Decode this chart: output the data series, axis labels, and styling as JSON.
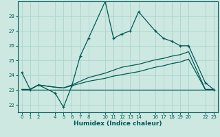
{
  "title": "",
  "xlabel": "Humidex (Indice chaleur)",
  "ylabel": "",
  "bg_color": "#cce8e0",
  "grid_color": "#aad4cc",
  "line_color": "#005858",
  "xticks": [
    0,
    1,
    2,
    4,
    5,
    6,
    7,
    8,
    10,
    11,
    12,
    13,
    14,
    16,
    17,
    18,
    19,
    20,
    22,
    23
  ],
  "yticks": [
    22,
    23,
    24,
    25,
    26,
    27,
    28
  ],
  "ylim": [
    21.5,
    29.0
  ],
  "xlim": [
    -0.5,
    23.5
  ],
  "line1_x": [
    0,
    1,
    2,
    4,
    5,
    6,
    7,
    8,
    10,
    11,
    12,
    13,
    14,
    16,
    17,
    18,
    19,
    20,
    22,
    23
  ],
  "line1_y": [
    24.2,
    23.05,
    23.35,
    22.8,
    21.85,
    23.3,
    25.3,
    26.5,
    29.0,
    26.5,
    26.8,
    27.0,
    28.3,
    27.0,
    26.5,
    26.3,
    26.0,
    26.0,
    23.5,
    23.05
  ],
  "line2_x": [
    0,
    1,
    2,
    4,
    5,
    6,
    7,
    8,
    10,
    11,
    12,
    13,
    14,
    16,
    17,
    18,
    19,
    20,
    22,
    23
  ],
  "line2_y": [
    23.05,
    23.05,
    23.35,
    23.2,
    23.15,
    23.3,
    23.45,
    23.6,
    23.8,
    23.95,
    24.05,
    24.15,
    24.25,
    24.55,
    24.65,
    24.8,
    24.9,
    25.1,
    23.05,
    23.05
  ],
  "line3_x": [
    0,
    1,
    2,
    4,
    5,
    6,
    7,
    8,
    10,
    11,
    12,
    13,
    14,
    16,
    17,
    18,
    19,
    20,
    22,
    23
  ],
  "line3_y": [
    23.05,
    23.05,
    23.35,
    23.2,
    23.15,
    23.35,
    23.6,
    23.85,
    24.15,
    24.35,
    24.55,
    24.65,
    24.75,
    25.05,
    25.15,
    25.3,
    25.4,
    25.6,
    23.05,
    23.05
  ],
  "line4_x": [
    0,
    22,
    23
  ],
  "line4_y": [
    23.05,
    23.05,
    23.05
  ]
}
